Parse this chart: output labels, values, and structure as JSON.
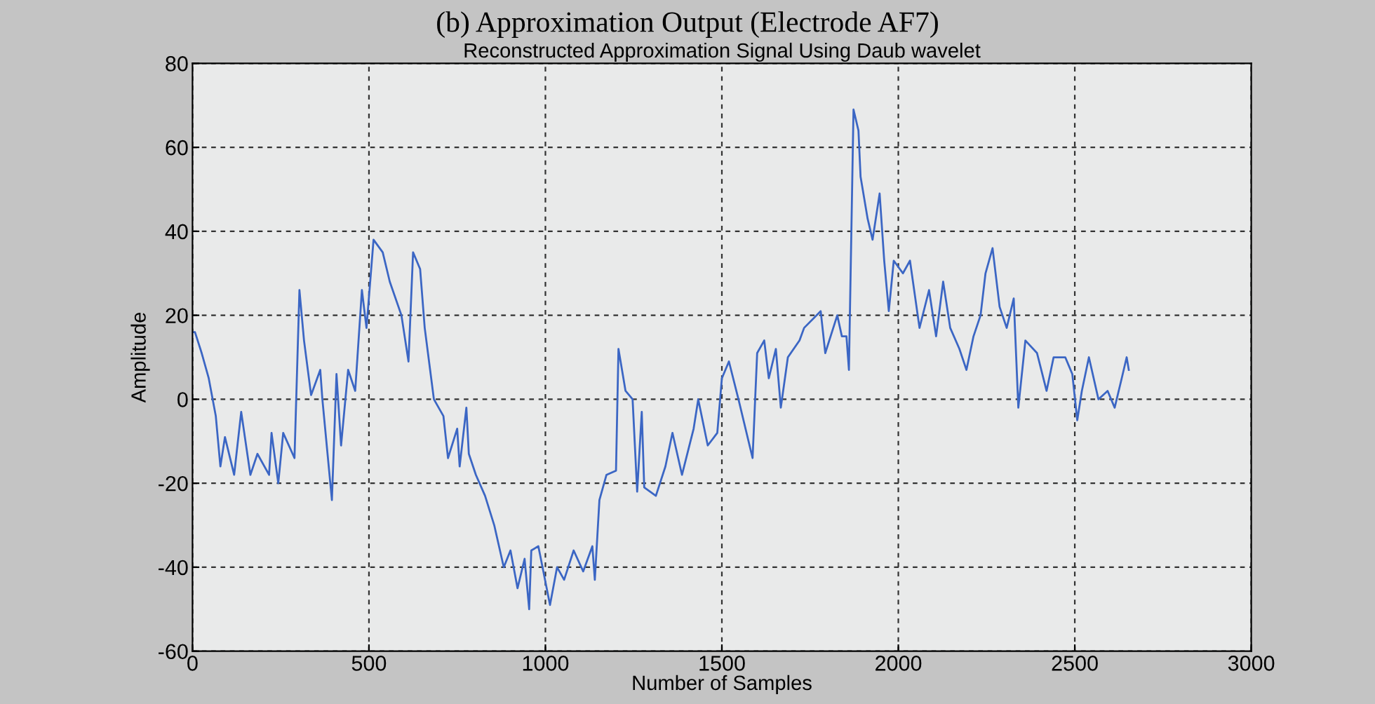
{
  "chart_data": {
    "type": "line",
    "title": "(b) Approximation Output (Electrode AF7)",
    "subtitle": "Reconstructed Approximation Signal Using Daub wavelet",
    "xlabel": "Number of Samples",
    "ylabel": "Amplitude",
    "series": [
      {
        "color": "#3b66c4",
        "x": [
          0,
          7,
          26,
          46,
          66,
          79,
          92,
          118,
          138,
          164,
          184,
          217,
          224,
          243,
          257,
          289,
          303,
          316,
          336,
          362,
          368,
          395,
          408,
          421,
          441,
          461,
          480,
          493,
          513,
          539,
          559,
          592,
          612,
          625,
          645,
          658,
          684,
          711,
          724,
          750,
          757,
          776,
          783,
          803,
          829,
          855,
          882,
          901,
          921,
          941,
          954,
          960,
          980,
          1013,
          1033,
          1053,
          1080,
          1107,
          1133,
          1140,
          1153,
          1173,
          1200,
          1207,
          1227,
          1247,
          1260,
          1273,
          1280,
          1313,
          1340,
          1360,
          1387,
          1420,
          1433,
          1460,
          1487,
          1500,
          1520,
          1547,
          1587,
          1600,
          1620,
          1633,
          1653,
          1667,
          1687,
          1720,
          1733,
          1780,
          1793,
          1827,
          1840,
          1853,
          1860,
          1873,
          1887,
          1893,
          1913,
          1927,
          1947,
          1960,
          1973,
          1987,
          2013,
          2033,
          2060,
          2087,
          2107,
          2127,
          2147,
          2173,
          2193,
          2213,
          2233,
          2247,
          2267,
          2287,
          2307,
          2327,
          2340,
          2360,
          2393,
          2420,
          2440,
          2473,
          2493,
          2507,
          2520,
          2540,
          2567,
          2593,
          2613,
          2633,
          2647,
          2653
        ],
        "values": [
          16,
          16,
          11,
          5,
          -4,
          -16,
          -9,
          -18,
          -3,
          -18,
          -13,
          -18,
          -8,
          -20,
          -8,
          -14,
          26,
          14,
          1,
          7,
          0,
          -24,
          6,
          -11,
          7,
          2,
          26,
          17,
          38,
          35,
          28,
          20,
          9,
          35,
          31,
          17,
          0,
          -4,
          -14,
          -7,
          -16,
          -2,
          -13,
          -18,
          -23,
          -30,
          -40,
          -36,
          -45,
          -38,
          -50,
          -36,
          -35,
          -49,
          -40,
          -43,
          -36,
          -41,
          -35,
          -43,
          -24,
          -18,
          -17,
          12,
          2,
          0,
          -22,
          -3,
          -21,
          -23,
          -16,
          -8,
          -18,
          -7,
          0,
          -11,
          -8,
          5,
          9,
          0,
          -14,
          11,
          14,
          5,
          12,
          -2,
          10,
          14,
          17,
          21,
          11,
          20,
          15,
          15,
          7,
          69,
          64,
          53,
          43,
          38,
          49,
          33,
          21,
          33,
          30,
          33,
          17,
          26,
          15,
          28,
          17,
          12,
          7,
          15,
          20,
          30,
          36,
          22,
          17,
          24,
          -2,
          14,
          11,
          2,
          10,
          10,
          6,
          -5,
          2,
          10,
          0,
          2,
          -2,
          5,
          10,
          7
        ]
      }
    ],
    "xlim": [
      0,
      3000
    ],
    "xticks": [
      0,
      500,
      1000,
      1500,
      2000,
      2500,
      3000
    ],
    "ylim": [
      -60,
      80
    ],
    "yticks": [
      -60,
      -40,
      -20,
      0,
      20,
      40,
      60,
      80
    ],
    "grid": true,
    "line_style": "solid",
    "marker": "none"
  }
}
